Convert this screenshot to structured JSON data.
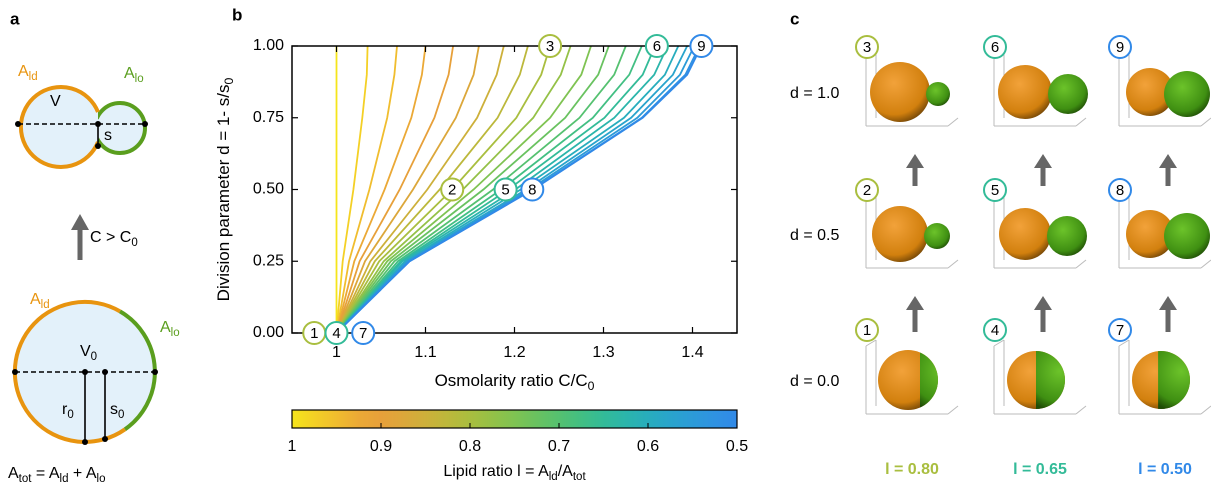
{
  "panel_labels": [
    "a",
    "b",
    "c"
  ],
  "panel_a": {
    "top_ald": [
      "A",
      "ld"
    ],
    "top_alo": [
      "A",
      "lo"
    ],
    "top_v": [
      "V"
    ],
    "top_s": [
      "s"
    ],
    "arrow_label": [
      "C > C",
      "0"
    ],
    "bottom_ald": [
      "A",
      "ld"
    ],
    "bottom_alo": [
      "A",
      "lo"
    ],
    "bottom_v": [
      "V",
      "0"
    ],
    "bottom_r": [
      "r",
      "0"
    ],
    "bottom_s": [
      "s",
      "0"
    ],
    "formula": [
      "A",
      "tot",
      " = A",
      "ld",
      " + A",
      "lo"
    ]
  },
  "chart_data": {
    "type": "line",
    "xlabel": [
      "Osmolarity ratio C/C",
      "0"
    ],
    "ylabel": [
      "Division parameter d = 1- s/s",
      "0"
    ],
    "xlim": [
      0.95,
      1.45
    ],
    "ylim": [
      0,
      1
    ],
    "xticks": [
      1,
      1.1,
      1.2,
      1.3,
      1.4
    ],
    "yticks": [
      {
        "value": 0,
        "label": "0.00"
      },
      {
        "value": 0.25,
        "label": "0.25"
      },
      {
        "value": 0.5,
        "label": "0.50"
      },
      {
        "value": 0.75,
        "label": "0.75"
      },
      {
        "value": 1,
        "label": "1.00"
      }
    ],
    "grid": false,
    "series": [
      {
        "color": "#f5e51b",
        "x": [
          1,
          1,
          1,
          1,
          1,
          1
        ],
        "values": [
          0,
          0.25,
          0.5,
          0.75,
          0.9,
          1
        ]
      },
      {
        "color": "#f4d025",
        "x": [
          1,
          1.007,
          1.019,
          1.029,
          1.034,
          1.035
        ],
        "values": [
          0,
          0.25,
          0.5,
          0.75,
          0.9,
          1
        ]
      },
      {
        "color": "#f0bd2e",
        "x": [
          1,
          1.014,
          1.037,
          1.057,
          1.065,
          1.068
        ],
        "values": [
          0,
          0.25,
          0.5,
          0.75,
          0.9,
          1
        ]
      },
      {
        "color": "#eba936",
        "x": [
          1,
          1.02,
          1.054,
          1.084,
          1.096,
          1.1
        ],
        "values": [
          0,
          0.25,
          0.5,
          0.75,
          0.9,
          1
        ]
      },
      {
        "color": "#e7a03a",
        "x": [
          1,
          1.026,
          1.071,
          1.11,
          1.126,
          1.131
        ],
        "values": [
          0,
          0.25,
          0.5,
          0.75,
          0.9,
          1
        ]
      },
      {
        "color": "#dca73a",
        "x": [
          1,
          1.032,
          1.086,
          1.134,
          1.154,
          1.16
        ],
        "values": [
          0,
          0.25,
          0.5,
          0.75,
          0.9,
          1
        ]
      },
      {
        "color": "#cdb03a",
        "x": [
          1,
          1.038,
          1.102,
          1.158,
          1.18,
          1.188
        ],
        "values": [
          0,
          0.25,
          0.5,
          0.75,
          0.9,
          1
        ]
      },
      {
        "color": "#bcb83b",
        "x": [
          1,
          1.043,
          1.116,
          1.181,
          1.206,
          1.215
        ],
        "values": [
          0,
          0.25,
          0.5,
          0.75,
          0.9,
          1
        ]
      },
      {
        "color": "#a9be3f",
        "x": [
          1,
          1.048,
          1.13,
          1.202,
          1.23,
          1.24
        ],
        "values": [
          0,
          0.25,
          0.5,
          0.75,
          0.9,
          1
        ]
      },
      {
        "color": "#94c147",
        "x": [
          1,
          1.053,
          1.142,
          1.221,
          1.252,
          1.263
        ],
        "values": [
          0,
          0.25,
          0.5,
          0.75,
          0.9,
          1
        ]
      },
      {
        "color": "#7fc352",
        "x": [
          1,
          1.057,
          1.154,
          1.24,
          1.275,
          1.286
        ],
        "values": [
          0,
          0.25,
          0.5,
          0.75,
          0.9,
          1
        ]
      },
      {
        "color": "#69c260",
        "x": [
          1,
          1.061,
          1.165,
          1.257,
          1.294,
          1.306
        ],
        "values": [
          0,
          0.25,
          0.5,
          0.75,
          0.9,
          1
        ]
      },
      {
        "color": "#55c170",
        "x": [
          1,
          1.065,
          1.176,
          1.273,
          1.312,
          1.325
        ],
        "values": [
          0,
          0.25,
          0.5,
          0.75,
          0.9,
          1
        ]
      },
      {
        "color": "#42bf83",
        "x": [
          1,
          1.069,
          1.185,
          1.288,
          1.329,
          1.343
        ],
        "values": [
          0,
          0.25,
          0.5,
          0.75,
          0.9,
          1
        ]
      },
      {
        "color": "#33bb98",
        "x": [
          1,
          1.072,
          1.193,
          1.301,
          1.344,
          1.358
        ],
        "values": [
          0,
          0.25,
          0.5,
          0.75,
          0.9,
          1
        ]
      },
      {
        "color": "#2bb5ab",
        "x": [
          1,
          1.074,
          1.201,
          1.312,
          1.357,
          1.372
        ],
        "values": [
          0,
          0.25,
          0.5,
          0.75,
          0.9,
          1
        ]
      },
      {
        "color": "#28adbd",
        "x": [
          1,
          1.077,
          1.207,
          1.323,
          1.369,
          1.384
        ],
        "values": [
          0,
          0.25,
          0.5,
          0.75,
          0.9,
          1
        ]
      },
      {
        "color": "#29a4cc",
        "x": [
          1,
          1.079,
          1.213,
          1.331,
          1.378,
          1.394
        ],
        "values": [
          0,
          0.25,
          0.5,
          0.75,
          0.9,
          1
        ]
      },
      {
        "color": "#2c9bd8",
        "x": [
          1,
          1.08,
          1.217,
          1.338,
          1.386,
          1.402
        ],
        "values": [
          0,
          0.25,
          0.5,
          0.75,
          0.9,
          1
        ]
      },
      {
        "color": "#2f92e2",
        "x": [
          1,
          1.082,
          1.22,
          1.343,
          1.392,
          1.408
        ],
        "values": [
          0,
          0.25,
          0.5,
          0.75,
          0.9,
          1
        ]
      },
      {
        "color": "#3189e8",
        "x": [
          1,
          1.082,
          1.221,
          1.344,
          1.394,
          1.41
        ],
        "values": [
          0,
          0.25,
          0.5,
          0.75,
          0.9,
          1
        ]
      }
    ],
    "markers": [
      {
        "label": "1",
        "x": 0.975,
        "y": 0,
        "color": "#a9be3f"
      },
      {
        "label": "4",
        "x": 1.0,
        "y": 0,
        "color": "#33bb98"
      },
      {
        "label": "7",
        "x": 1.03,
        "y": 0,
        "color": "#3189e8"
      },
      {
        "label": "2",
        "x": 1.13,
        "y": 0.5,
        "color": "#a9be3f"
      },
      {
        "label": "5",
        "x": 1.19,
        "y": 0.5,
        "color": "#33bb98"
      },
      {
        "label": "8",
        "x": 1.22,
        "y": 0.5,
        "color": "#3189e8"
      },
      {
        "label": "3",
        "x": 1.24,
        "y": 1,
        "color": "#a9be3f"
      },
      {
        "label": "6",
        "x": 1.36,
        "y": 1,
        "color": "#33bb98"
      },
      {
        "label": "9",
        "x": 1.41,
        "y": 1,
        "color": "#3189e8"
      }
    ],
    "colorbar": {
      "lim": [
        1,
        0.5
      ],
      "ticks": [
        1,
        0.9,
        0.8,
        0.7,
        0.6,
        0.5
      ],
      "label": [
        "Lipid ratio l =  A",
        "ld",
        "/A",
        "tot"
      ]
    }
  },
  "panel_c": {
    "row_labels": [
      "d = 1.0",
      "d = 0.5",
      "d = 0.0"
    ],
    "cells": [
      [
        "3",
        "6",
        "9"
      ],
      [
        "2",
        "5",
        "8"
      ],
      [
        "1",
        "4",
        "7"
      ]
    ],
    "col_labels": [
      "l = 0.80",
      "l = 0.65",
      "l = 0.50"
    ],
    "col_colors": [
      "#a9be3f",
      "#33bb98",
      "#3189e8"
    ]
  }
}
